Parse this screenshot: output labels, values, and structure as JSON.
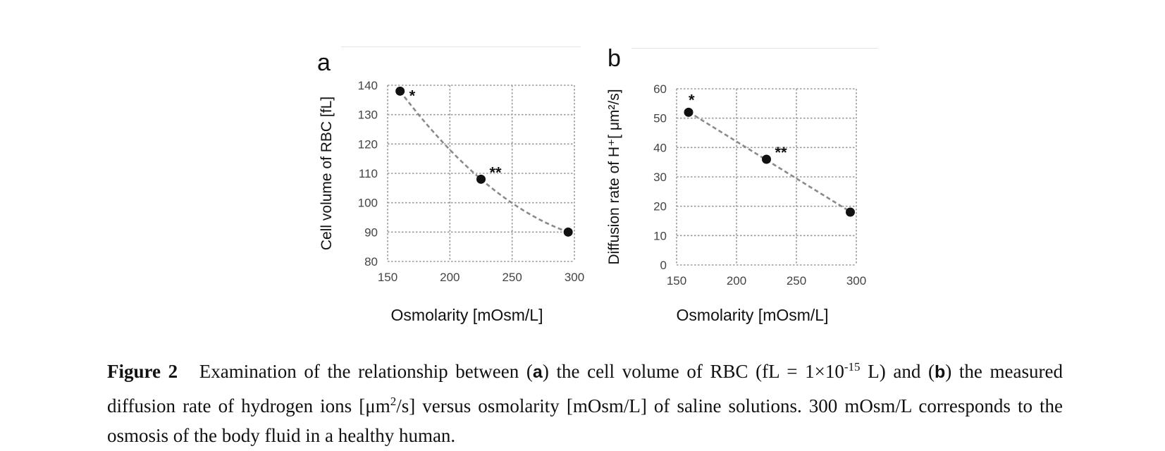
{
  "chart_data": [
    {
      "panel": "a",
      "type": "scatter",
      "xlabel": "Osmolarity [mOsm/L]",
      "ylabel": "Cell volume of RBC [fL]",
      "xlim": [
        150,
        300
      ],
      "ylim": [
        80,
        140
      ],
      "xticks": [
        150,
        200,
        250,
        300
      ],
      "yticks": [
        80,
        90,
        100,
        110,
        120,
        130,
        140
      ],
      "grid": true,
      "points": [
        {
          "x": 160,
          "y": 138,
          "label": "*"
        },
        {
          "x": 225,
          "y": 108,
          "label": "**"
        },
        {
          "x": 295,
          "y": 90,
          "label": ""
        }
      ],
      "trendline": "dashed-curve"
    },
    {
      "panel": "b",
      "type": "scatter",
      "xlabel": "Osmolarity [mOsm/L]",
      "ylabel": "Diffusion rate of H⁺[ μm²/s]",
      "xlim": [
        150,
        300
      ],
      "ylim": [
        0,
        60
      ],
      "xticks": [
        150,
        200,
        250,
        300
      ],
      "yticks": [
        0,
        10,
        20,
        30,
        40,
        50,
        60
      ],
      "grid": true,
      "points": [
        {
          "x": 160,
          "y": 52,
          "label": "*"
        },
        {
          "x": 225,
          "y": 36,
          "label": "**"
        },
        {
          "x": 295,
          "y": 18,
          "label": ""
        }
      ],
      "trendline": "dashed-line"
    }
  ],
  "caption": {
    "figure_number": "Figure 2",
    "part1": "Examination of the relationship between (",
    "a": "a",
    "part2": ") the cell volume of RBC (fL = 1×10",
    "exp": "-15",
    "part3": " L) and (",
    "b": "b",
    "part4": ") the measured diffusion rate of hydrogen ions [μm",
    "sq": "2",
    "part5": "/s] versus osmolarity [mOsm/L] of saline solutions. 300 mOsm/L corresponds to the osmosis of the body fluid in a healthy human."
  },
  "colors": {
    "grid": "#9a9a9a",
    "marker": "#111111",
    "trend": "#8a8a8a",
    "text": "#222222"
  }
}
